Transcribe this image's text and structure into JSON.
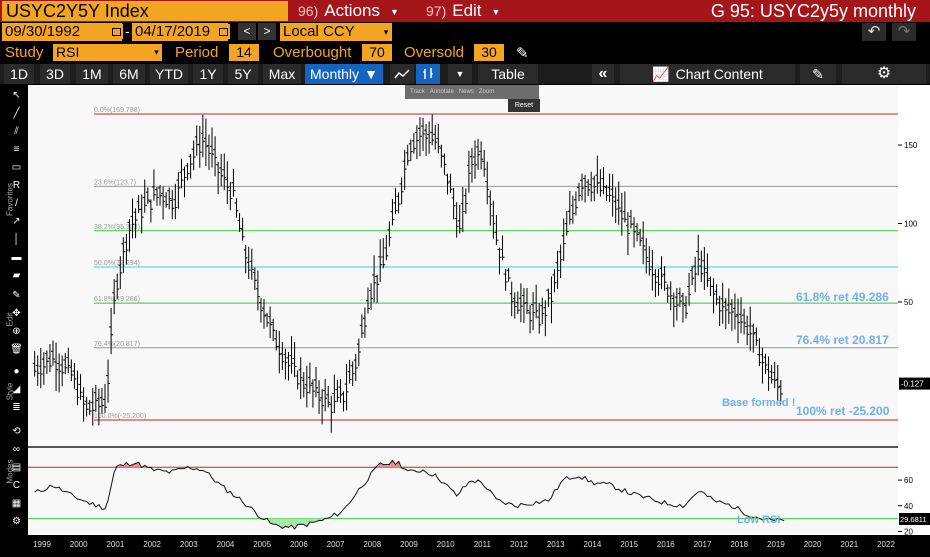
{
  "header": {
    "ticker": "USYC2Y5Y Index",
    "actions_num": "96)",
    "actions_label": "Actions",
    "edit_num": "97)",
    "edit_label": "Edit",
    "title": "G 95: USYC2y5y monthly"
  },
  "dates": {
    "start": "09/30/1992",
    "separator": "-",
    "end": "04/17/2019",
    "prev": "<",
    "next": ">",
    "currency": "Local CCY"
  },
  "study": {
    "label": "Study",
    "value": "RSI",
    "period_label": "Period",
    "period_value": "14",
    "overbought_label": "Overbought",
    "overbought_value": "70",
    "oversold_label": "Oversold",
    "oversold_value": "30"
  },
  "toolbar": {
    "ranges": [
      "1D",
      "3D",
      "1M",
      "6M",
      "YTD",
      "1Y",
      "5Y",
      "Max"
    ],
    "frequency": "Monthly",
    "table": "Table",
    "chart_content": "Chart Content"
  },
  "annotate_bar": {
    "track": "Track",
    "annotate": "Annotate",
    "news": "News",
    "zoom": "Zoom",
    "reset": "Reset"
  },
  "side_labels": {
    "favorites": "Favorites",
    "edit": "Edit",
    "style": "Style",
    "modes": "Modes"
  },
  "annotations": {
    "fib_618": "61.8% ret 49.286",
    "fib_764": "76.4% ret 20.817",
    "fib_100": "100% ret -25.200",
    "base": "Base formed !",
    "low_rsi": "Low RSI"
  },
  "colors": {
    "title_bg": "#a4161a",
    "amber": "#f3a521",
    "active_blue": "#1565c0",
    "fib_red": "#cc2222",
    "fib_green": "#33cc33",
    "fib_cyan": "#33d6d6",
    "fib_gray": "#999999",
    "annotation_blue": "#6fb0e8"
  },
  "chart_data": {
    "type": "bar",
    "x_ticks": [
      "1999",
      "2000",
      "2001",
      "2002",
      "2003",
      "2004",
      "2005",
      "2006",
      "2007",
      "2008",
      "2009",
      "2010",
      "2011",
      "2012",
      "2013",
      "2014",
      "2015",
      "2016",
      "2017",
      "2018",
      "2019",
      "2020",
      "2021",
      "2022"
    ],
    "ylim": [
      -30,
      180
    ],
    "y_ticks": [
      150,
      100,
      50
    ],
    "last_value": "-0.127",
    "fib_levels": [
      {
        "label": "0.0%(169.788)",
        "value": 169.788,
        "color": "red"
      },
      {
        "label": "23.6%(123.7)",
        "value": 123.7,
        "color": "gray"
      },
      {
        "label": "38.2%(95.383)",
        "value": 95.383,
        "color": "green"
      },
      {
        "label": "50.0%(72.294)",
        "value": 72.294,
        "color": "cyan"
      },
      {
        "label": "61.8%(49.286)",
        "value": 49.286,
        "color": "green"
      },
      {
        "label": "76.4%(20.817)",
        "value": 20.817,
        "color": "gray"
      },
      {
        "label": "100.0%(-25.200)",
        "value": -25.2,
        "color": "red"
      }
    ],
    "price_path": [
      [
        1998.8,
        8
      ],
      [
        1999.3,
        15
      ],
      [
        1999.8,
        5
      ],
      [
        2000.2,
        -18
      ],
      [
        2000.6,
        -14
      ],
      [
        2000.75,
        -12
      ],
      [
        2001.0,
        60
      ],
      [
        2001.4,
        100
      ],
      [
        2001.8,
        112
      ],
      [
        2002.2,
        120
      ],
      [
        2002.6,
        115
      ],
      [
        2003.0,
        140
      ],
      [
        2003.4,
        155
      ],
      [
        2003.8,
        135
      ],
      [
        2004.2,
        120
      ],
      [
        2004.5,
        85
      ],
      [
        2004.9,
        55
      ],
      [
        2005.3,
        30
      ],
      [
        2005.7,
        12
      ],
      [
        2006.1,
        0
      ],
      [
        2006.5,
        -8
      ],
      [
        2006.9,
        -15
      ],
      [
        2007.2,
        -10
      ],
      [
        2007.6,
        15
      ],
      [
        2007.9,
        55
      ],
      [
        2008.3,
        75
      ],
      [
        2008.7,
        115
      ],
      [
        2009.0,
        150
      ],
      [
        2009.3,
        158
      ],
      [
        2009.7,
        155
      ],
      [
        2010.0,
        135
      ],
      [
        2010.4,
        95
      ],
      [
        2010.7,
        140
      ],
      [
        2011.0,
        148
      ],
      [
        2011.4,
        90
      ],
      [
        2011.8,
        55
      ],
      [
        2012.2,
        45
      ],
      [
        2012.6,
        40
      ],
      [
        2012.9,
        55
      ],
      [
        2013.3,
        95
      ],
      [
        2013.7,
        128
      ],
      [
        2014.1,
        125
      ],
      [
        2014.5,
        118
      ],
      [
        2014.9,
        102
      ],
      [
        2015.3,
        88
      ],
      [
        2015.7,
        70
      ],
      [
        2016.1,
        58
      ],
      [
        2016.5,
        45
      ],
      [
        2016.9,
        78
      ],
      [
        2017.2,
        60
      ],
      [
        2017.6,
        45
      ],
      [
        2017.9,
        45
      ],
      [
        2018.3,
        32
      ],
      [
        2018.7,
        10
      ],
      [
        2019.0,
        -2
      ],
      [
        2019.2,
        -5
      ]
    ],
    "rsi": {
      "overbought": 70,
      "oversold": 30,
      "last_value": "29.6811",
      "y_ticks": [
        60,
        40,
        20
      ],
      "ylim": [
        18,
        78
      ],
      "path": [
        [
          1998.8,
          50
        ],
        [
          1999.3,
          56
        ],
        [
          1999.8,
          48
        ],
        [
          2000.3,
          42
        ],
        [
          2000.75,
          38
        ],
        [
          2001.0,
          70
        ],
        [
          2001.5,
          74
        ],
        [
          2002.0,
          68
        ],
        [
          2002.5,
          66
        ],
        [
          2003.0,
          70
        ],
        [
          2003.4,
          68
        ],
        [
          2003.9,
          55
        ],
        [
          2004.4,
          45
        ],
        [
          2004.9,
          33
        ],
        [
          2005.3,
          25
        ],
        [
          2005.8,
          23
        ],
        [
          2006.3,
          26
        ],
        [
          2006.8,
          30
        ],
        [
          2007.2,
          36
        ],
        [
          2007.7,
          55
        ],
        [
          2008.2,
          72
        ],
        [
          2008.7,
          74
        ],
        [
          2009.0,
          66
        ],
        [
          2009.4,
          68
        ],
        [
          2009.8,
          62
        ],
        [
          2010.3,
          48
        ],
        [
          2010.7,
          60
        ],
        [
          2011.0,
          58
        ],
        [
          2011.4,
          44
        ],
        [
          2011.9,
          40
        ],
        [
          2012.3,
          42
        ],
        [
          2012.8,
          44
        ],
        [
          2013.2,
          60
        ],
        [
          2013.6,
          64
        ],
        [
          2014.0,
          58
        ],
        [
          2014.5,
          56
        ],
        [
          2015.0,
          50
        ],
        [
          2015.5,
          46
        ],
        [
          2016.0,
          42
        ],
        [
          2016.5,
          40
        ],
        [
          2016.9,
          52
        ],
        [
          2017.3,
          44
        ],
        [
          2017.8,
          40
        ],
        [
          2018.2,
          34
        ],
        [
          2018.6,
          30
        ],
        [
          2019.0,
          28
        ],
        [
          2019.25,
          29.7
        ]
      ]
    }
  }
}
